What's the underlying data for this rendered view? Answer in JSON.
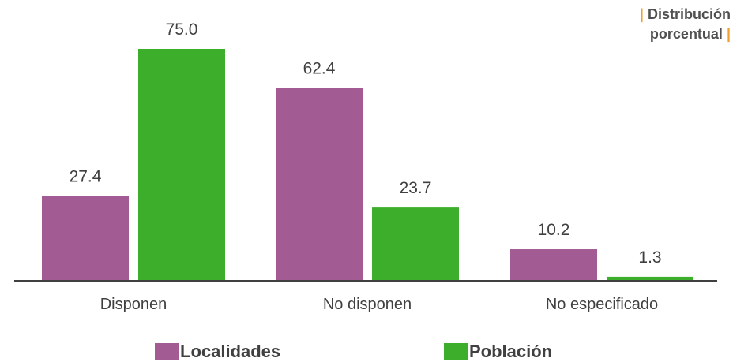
{
  "subtitle": {
    "line1": "Distribución",
    "line2": "porcentual",
    "separator": "|"
  },
  "colors": {
    "localidades": "#a35b94",
    "poblacion": "#3dae2b",
    "accent": "#f0a030",
    "axis": "#404040",
    "label_text": "#404040"
  },
  "legend": {
    "items": [
      {
        "label": "Localidades",
        "color": "#a35b94"
      },
      {
        "label": "Población",
        "color": "#3dae2b"
      }
    ]
  },
  "chart_data": {
    "type": "bar",
    "categories": [
      "Disponen",
      "No disponen",
      "No especificado"
    ],
    "series": [
      {
        "name": "Localidades",
        "values": [
          27.4,
          62.4,
          10.2
        ],
        "value_labels": [
          "27.4",
          "62.4",
          "10.2"
        ]
      },
      {
        "name": "Población",
        "values": [
          75.0,
          23.7,
          1.3
        ],
        "value_labels": [
          "75.0",
          "23.7",
          "1.3"
        ]
      }
    ],
    "title": "",
    "xlabel": "",
    "ylabel": "",
    "ylim": [
      0,
      80
    ],
    "grid": false,
    "legend_position": "bottom"
  }
}
